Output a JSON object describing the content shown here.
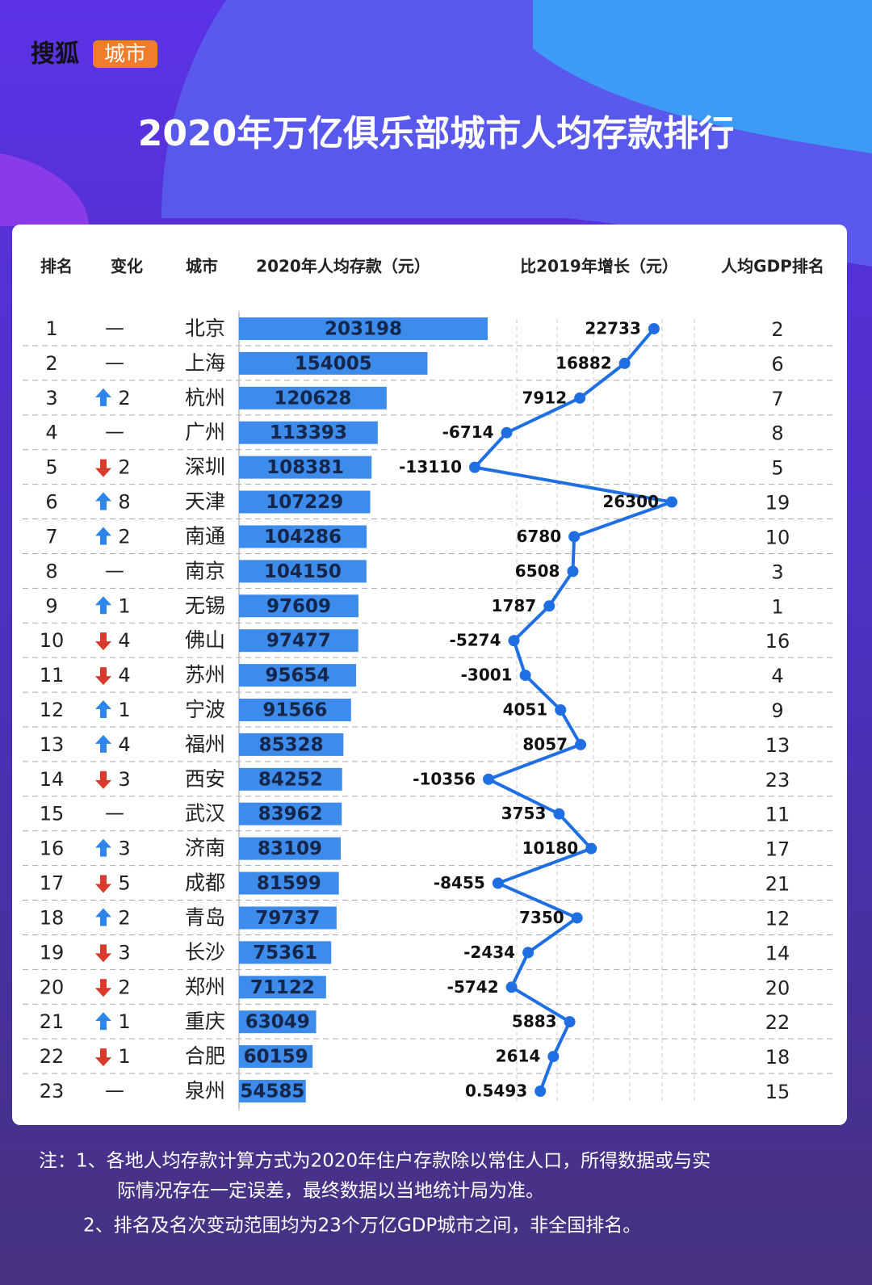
{
  "logo": {
    "brand": "搜狐",
    "sub": "城市"
  },
  "title": "2020年万亿俱乐部城市人均存款排行",
  "columns": [
    "排名",
    "变化",
    "城市",
    "2020年人均存款（元）",
    "比2019年增长（元）",
    "人均GDP排名"
  ],
  "bar_color": "#3d8bea",
  "line_color": "#1f6fe3",
  "up_color": "#2f86ea",
  "down_color": "#d93a2b",
  "rows": [
    {
      "rank": 1,
      "change": "—",
      "city": "北京",
      "deposit": 203198,
      "growth": 22733,
      "gdp_rank": 2
    },
    {
      "rank": 2,
      "change": "—",
      "city": "上海",
      "deposit": 154005,
      "growth": 16882,
      "gdp_rank": 6
    },
    {
      "rank": 3,
      "change": {
        "direction": "up",
        "amount": 2
      },
      "city": "杭州",
      "deposit": 120628,
      "growth": 7912,
      "gdp_rank": 7
    },
    {
      "rank": 4,
      "change": "—",
      "city": "广州",
      "deposit": 113393,
      "growth": -6714,
      "gdp_rank": 8
    },
    {
      "rank": 5,
      "change": {
        "direction": "down",
        "amount": 2
      },
      "city": "深圳",
      "deposit": 108381,
      "growth": -13110,
      "gdp_rank": 5
    },
    {
      "rank": 6,
      "change": {
        "direction": "up",
        "amount": 8
      },
      "city": "天津",
      "deposit": 107229,
      "growth": 26300,
      "gdp_rank": 19
    },
    {
      "rank": 7,
      "change": {
        "direction": "up",
        "amount": 2
      },
      "city": "南通",
      "deposit": 104286,
      "growth": 6780,
      "gdp_rank": 10
    },
    {
      "rank": 8,
      "change": "—",
      "city": "南京",
      "deposit": 104150,
      "growth": 6508,
      "gdp_rank": 3
    },
    {
      "rank": 9,
      "change": {
        "direction": "up",
        "amount": 1
      },
      "city": "无锡",
      "deposit": 97609,
      "growth": 1787,
      "gdp_rank": 1
    },
    {
      "rank": 10,
      "change": {
        "direction": "down",
        "amount": 4
      },
      "city": "佛山",
      "deposit": 97477,
      "growth": -5274,
      "gdp_rank": 16
    },
    {
      "rank": 11,
      "change": {
        "direction": "down",
        "amount": 4
      },
      "city": "苏州",
      "deposit": 95654,
      "growth": -3001,
      "gdp_rank": 4
    },
    {
      "rank": 12,
      "change": {
        "direction": "up",
        "amount": 1
      },
      "city": "宁波",
      "deposit": 91566,
      "growth": 4051,
      "gdp_rank": 9
    },
    {
      "rank": 13,
      "change": {
        "direction": "up",
        "amount": 4
      },
      "city": "福州",
      "deposit": 85328,
      "growth": 8057,
      "gdp_rank": 13
    },
    {
      "rank": 14,
      "change": {
        "direction": "down",
        "amount": 3
      },
      "city": "西安",
      "deposit": 84252,
      "growth": -10356,
      "gdp_rank": 23
    },
    {
      "rank": 15,
      "change": "—",
      "city": "武汉",
      "deposit": 83962,
      "growth": 3753,
      "gdp_rank": 11
    },
    {
      "rank": 16,
      "change": {
        "direction": "up",
        "amount": 3
      },
      "city": "济南",
      "deposit": 83109,
      "growth": 10180,
      "gdp_rank": 17
    },
    {
      "rank": 17,
      "change": {
        "direction": "down",
        "amount": 5
      },
      "city": "成都",
      "deposit": 81599,
      "growth": -8455,
      "gdp_rank": 21
    },
    {
      "rank": 18,
      "change": {
        "direction": "up",
        "amount": 2
      },
      "city": "青岛",
      "deposit": 79737,
      "growth": 7350,
      "gdp_rank": 12
    },
    {
      "rank": 19,
      "change": {
        "direction": "down",
        "amount": 3
      },
      "city": "长沙",
      "deposit": 75361,
      "growth": -2434,
      "gdp_rank": 14
    },
    {
      "rank": 20,
      "change": {
        "direction": "down",
        "amount": 2
      },
      "city": "郑州",
      "deposit": 71122,
      "growth": -5742,
      "gdp_rank": 20
    },
    {
      "rank": 21,
      "change": {
        "direction": "up",
        "amount": 1
      },
      "city": "重庆",
      "deposit": 63049,
      "growth": 5883,
      "gdp_rank": 22
    },
    {
      "rank": 22,
      "change": {
        "direction": "down",
        "amount": 1
      },
      "city": "合肥",
      "deposit": 60159,
      "growth": 2614,
      "gdp_rank": 18
    },
    {
      "rank": 23,
      "change": "—",
      "city": "泉州",
      "deposit": 54585,
      "growth": 0.5493,
      "gdp_rank": 15
    }
  ],
  "notes": [
    "注：1、各地人均存款计算方式为2020年住户存款除以常住人口，所得数据或与实",
    "际情况存在一定误差，最终数据以当地统计局为准。",
    "2、排名及名次变动范围均为23个万亿GDP城市之间，非全国排名。"
  ]
}
